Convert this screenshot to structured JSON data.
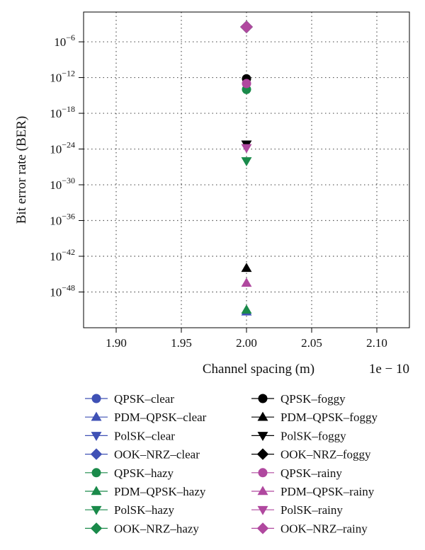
{
  "chart_data": {
    "type": "scatter",
    "title": "",
    "xlabel": "Channel spacing (m)",
    "ylabel": "Bit error rate (BER)",
    "x_offset_label": "1e − 10",
    "xlim": [
      1.875,
      2.125
    ],
    "x_ticks": [
      1.9,
      1.95,
      2.0,
      2.05,
      2.1
    ],
    "x_tick_labels": [
      "1.90",
      "1.95",
      "2.00",
      "2.05",
      "2.10"
    ],
    "y_scale": "log",
    "ylim_log10": [
      -54,
      -1
    ],
    "y_ticks_log10": [
      -6,
      -12,
      -18,
      -24,
      -30,
      -36,
      -42,
      -48
    ],
    "y_tick_labels": [
      {
        "base": "10",
        "exp": "−6"
      },
      {
        "base": "10",
        "exp": "−12"
      },
      {
        "base": "10",
        "exp": "−18"
      },
      {
        "base": "10",
        "exp": "−24"
      },
      {
        "base": "10",
        "exp": "−30"
      },
      {
        "base": "10",
        "exp": "−36"
      },
      {
        "base": "10",
        "exp": "−42"
      },
      {
        "base": "10",
        "exp": "−48"
      }
    ],
    "grid": true,
    "legend_position": "below, two columns",
    "colors": {
      "clear": "#3f51b5",
      "hazy": "#1a8a4a",
      "foggy": "#000000",
      "rainy": "#b0489f"
    },
    "series": [
      {
        "name": "QPSK–clear",
        "marker": "circle",
        "color_key": "clear",
        "x": [
          2.0
        ],
        "y_log10": [
          null
        ]
      },
      {
        "name": "PDM–QPSK–clear",
        "marker": "triangle-up",
        "color_key": "clear",
        "x": [
          2.0
        ],
        "y_log10": [
          -51.3
        ]
      },
      {
        "name": "PolSK–clear",
        "marker": "triangle-down",
        "color_key": "clear",
        "x": [
          2.0
        ],
        "y_log10": [
          null
        ]
      },
      {
        "name": "OOK–NRZ–clear",
        "marker": "diamond",
        "color_key": "clear",
        "x": [
          2.0
        ],
        "y_log10": [
          -3.5
        ]
      },
      {
        "name": "QPSK–hazy",
        "marker": "circle",
        "color_key": "hazy",
        "x": [
          2.0
        ],
        "y_log10": [
          -14.0
        ]
      },
      {
        "name": "PDM–QPSK–hazy",
        "marker": "triangle-up",
        "color_key": "hazy",
        "x": [
          2.0
        ],
        "y_log10": [
          -51.0
        ]
      },
      {
        "name": "PolSK–hazy",
        "marker": "triangle-down",
        "color_key": "hazy",
        "x": [
          2.0
        ],
        "y_log10": [
          -26.0
        ]
      },
      {
        "name": "OOK–NRZ–hazy",
        "marker": "diamond",
        "color_key": "hazy",
        "x": [
          2.0
        ],
        "y_log10": [
          -3.5
        ]
      },
      {
        "name": "QPSK–foggy",
        "marker": "circle",
        "color_key": "foggy",
        "x": [
          2.0
        ],
        "y_log10": [
          -12.2
        ]
      },
      {
        "name": "PDM–QPSK–foggy",
        "marker": "triangle-up",
        "color_key": "foggy",
        "x": [
          2.0
        ],
        "y_log10": [
          -44.0
        ]
      },
      {
        "name": "PolSK–foggy",
        "marker": "triangle-down",
        "color_key": "foggy",
        "x": [
          2.0
        ],
        "y_log10": [
          -23.2
        ]
      },
      {
        "name": "OOK–NRZ–foggy",
        "marker": "diamond",
        "color_key": "foggy",
        "x": [
          2.0
        ],
        "y_log10": [
          -3.5
        ]
      },
      {
        "name": "QPSK–rainy",
        "marker": "circle",
        "color_key": "rainy",
        "x": [
          2.0
        ],
        "y_log10": [
          -13.0
        ]
      },
      {
        "name": "PDM–QPSK–rainy",
        "marker": "triangle-up",
        "color_key": "rainy",
        "x": [
          2.0
        ],
        "y_log10": [
          -46.5
        ]
      },
      {
        "name": "PolSK–rainy",
        "marker": "triangle-down",
        "color_key": "rainy",
        "x": [
          2.0
        ],
        "y_log10": [
          -23.8
        ]
      },
      {
        "name": "OOK–NRZ–rainy",
        "marker": "diamond",
        "color_key": "rainy",
        "x": [
          2.0
        ],
        "y_log10": [
          -3.5
        ]
      }
    ]
  }
}
